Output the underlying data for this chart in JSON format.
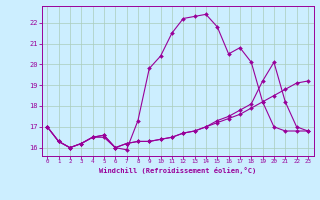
{
  "xlabel": "Windchill (Refroidissement éolien,°C)",
  "x": [
    0,
    1,
    2,
    3,
    4,
    5,
    6,
    7,
    8,
    9,
    10,
    11,
    12,
    13,
    14,
    15,
    16,
    17,
    18,
    19,
    20,
    21,
    22,
    23
  ],
  "line1": [
    17.0,
    16.3,
    16.0,
    16.2,
    16.5,
    16.5,
    16.0,
    15.9,
    17.3,
    19.8,
    20.4,
    21.5,
    22.2,
    22.3,
    22.4,
    21.8,
    20.5,
    20.8,
    20.1,
    18.2,
    17.0,
    16.8,
    16.8,
    16.8
  ],
  "line2": [
    17.0,
    16.3,
    16.0,
    16.2,
    16.5,
    16.6,
    16.0,
    16.2,
    16.3,
    16.3,
    16.4,
    16.5,
    16.7,
    16.8,
    17.0,
    17.3,
    17.5,
    17.8,
    18.1,
    19.2,
    20.1,
    18.2,
    17.0,
    16.8
  ],
  "line3": [
    17.0,
    16.3,
    16.0,
    16.2,
    16.5,
    16.6,
    16.0,
    16.2,
    16.3,
    16.3,
    16.4,
    16.5,
    16.7,
    16.8,
    17.0,
    17.2,
    17.4,
    17.6,
    17.9,
    18.2,
    18.5,
    18.8,
    19.1,
    19.2
  ],
  "line_color": "#990099",
  "bg_color": "#cceeff",
  "grid_color": "#aaccbb",
  "ylim": [
    15.6,
    22.8
  ],
  "xlim": [
    -0.5,
    23.5
  ]
}
